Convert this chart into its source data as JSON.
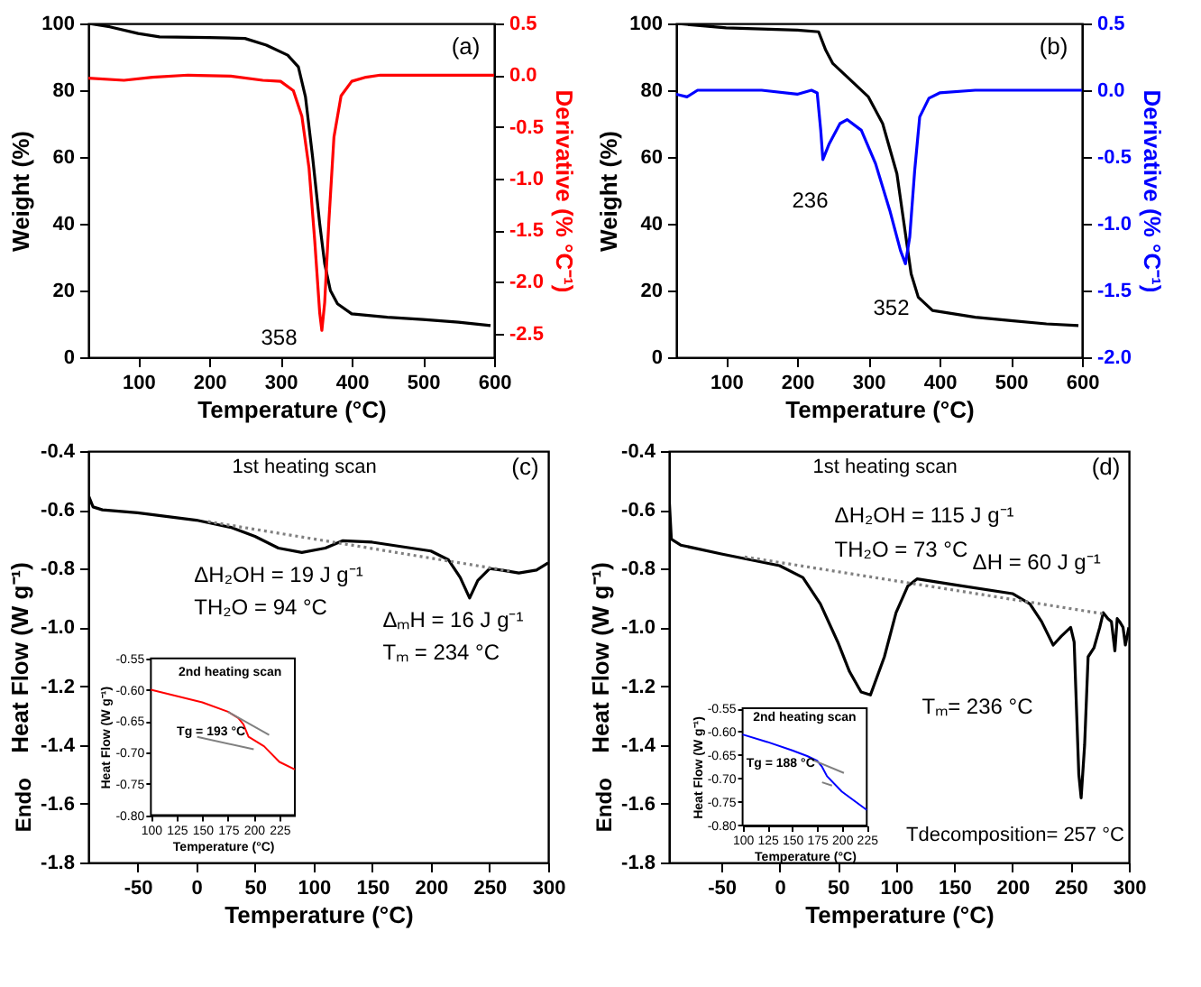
{
  "chart_data": [
    {
      "type": "line",
      "xlabel": "Temperature (°C)",
      "ylabel": "Weight (%)",
      "y2label": "Derivative (% °C⁻¹)",
      "xlim": [
        30,
        600
      ],
      "xticks": [
        100,
        200,
        300,
        400,
        500,
        600
      ],
      "ylim": [
        0,
        100
      ],
      "yticks": [
        0,
        20,
        40,
        60,
        80,
        100
      ],
      "y2lim": [
        -2.73,
        0.5
      ],
      "y2ticks": [
        0.5,
        {
          "value": 0,
          "label": "0.0"
        },
        -0.5,
        {
          "value": -1,
          "label": "-1.0"
        },
        -1.5,
        {
          "value": -2,
          "label": "-2.0"
        },
        -2.5
      ],
      "annotations": [
        "(a)",
        "358"
      ],
      "series": [
        {
          "color": "#000000",
          "x": [
            30,
            60,
            100,
            130,
            200,
            250,
            280,
            310,
            325,
            335,
            345,
            355,
            362,
            370,
            380,
            400,
            450,
            500,
            550,
            595
          ],
          "values": [
            100,
            99,
            97,
            96,
            95.8,
            95.5,
            93.5,
            90.5,
            87,
            78,
            60,
            40,
            28,
            20,
            16,
            13,
            12,
            11.3,
            10.5,
            9.5
          ]
        },
        {
          "color": "#ff0000",
          "axis": "y2",
          "x": [
            30,
            80,
            120,
            170,
            230,
            275,
            300,
            318,
            330,
            340,
            348,
            355,
            358,
            362,
            368,
            375,
            385,
            400,
            420,
            440,
            500,
            600
          ],
          "values": [
            -0.03,
            -0.05,
            -0.02,
            0,
            -0.01,
            -0.05,
            -0.06,
            -0.15,
            -0.4,
            -0.9,
            -1.6,
            -2.3,
            -2.47,
            -2.2,
            -1.4,
            -0.6,
            -0.2,
            -0.06,
            -0.02,
            0,
            0,
            0
          ]
        }
      ]
    },
    {
      "type": "line",
      "xlabel": "Temperature (°C)",
      "ylabel": "Weight (%)",
      "y2label": "Derivative (% °C⁻¹)",
      "xlim": [
        30,
        600
      ],
      "xticks": [
        100,
        200,
        300,
        400,
        500,
        600
      ],
      "ylim": [
        0,
        100
      ],
      "yticks": [
        0,
        20,
        40,
        60,
        80,
        100
      ],
      "y2lim": [
        -2,
        0.5
      ],
      "y2ticks": [
        0.5,
        {
          "value": 0,
          "label": "0.0"
        },
        -0.5,
        {
          "value": -1,
          "label": "-1.0"
        },
        -1.5,
        {
          "value": -2,
          "label": "-2.0"
        }
      ],
      "annotations": [
        "(b)",
        "236",
        "352"
      ],
      "series": [
        {
          "color": "#000000",
          "x": [
            30,
            100,
            200,
            230,
            240,
            250,
            270,
            300,
            320,
            340,
            350,
            360,
            370,
            390,
            450,
            500,
            550,
            595
          ],
          "values": [
            100,
            98.7,
            98,
            97.5,
            92,
            88,
            84,
            78,
            70,
            55,
            40,
            25,
            18,
            14,
            12,
            11,
            10,
            9.5
          ]
        },
        {
          "color": "#0000ff",
          "axis": "y2",
          "x": [
            30,
            45,
            60,
            150,
            200,
            220,
            228,
            233,
            236,
            245,
            260,
            270,
            290,
            310,
            330,
            345,
            352,
            358,
            365,
            372,
            385,
            400,
            450,
            600
          ],
          "values": [
            -0.03,
            -0.05,
            0,
            0,
            -0.03,
            0,
            -0.02,
            -0.3,
            -0.52,
            -0.4,
            -0.25,
            -0.22,
            -0.3,
            -0.55,
            -0.9,
            -1.2,
            -1.3,
            -1.1,
            -0.6,
            -0.2,
            -0.06,
            -0.02,
            0,
            0
          ]
        }
      ]
    },
    {
      "type": "line",
      "xlabel": "Temperature (°C)",
      "ylabel": "Heat Flow (W g⁻¹)",
      "xlim": [
        -92,
        300
      ],
      "xticks": [
        -50,
        0,
        50,
        100,
        150,
        200,
        250,
        300
      ],
      "ylim": [
        -1.8,
        -0.4
      ],
      "yticks": [
        -1.8,
        -1.6,
        -1.4,
        -1.2,
        {
          "value": -1,
          "label": "-1.0"
        },
        -0.8,
        -0.6,
        -0.4
      ],
      "annotations": [
        "1st heating scan",
        "(c)",
        "ΔH₂OH = 19 J g⁻¹",
        "TH₂O = 94 °C",
        "ΔₘH = 16 J g⁻¹",
        "Tₘ = 234 °C",
        "Endo"
      ],
      "series": [
        {
          "color": "#000000",
          "x": [
            -92,
            -88,
            -80,
            -50,
            0,
            30,
            50,
            70,
            90,
            110,
            125,
            150,
            200,
            215,
            225,
            233,
            240,
            250,
            260,
            275,
            290,
            300
          ],
          "values": [
            -0.55,
            -0.59,
            -0.6,
            -0.61,
            -0.635,
            -0.66,
            -0.69,
            -0.73,
            -0.745,
            -0.73,
            -0.705,
            -0.71,
            -0.74,
            -0.77,
            -0.83,
            -0.9,
            -0.84,
            -0.8,
            -0.805,
            -0.815,
            -0.805,
            -0.78
          ]
        },
        {
          "color": "#808080",
          "line_style": "dotted",
          "x": [
            10,
            270
          ],
          "values": [
            -0.64,
            -0.81
          ]
        }
      ]
    },
    {
      "type": "line",
      "xlabel": "Temperature (°C)",
      "ylabel": "Heat Flow (W g⁻¹)",
      "xlim": [
        100,
        240
      ],
      "xticks": [
        100,
        125,
        150,
        175,
        200,
        225
      ],
      "ylim": [
        -0.8,
        -0.55
      ],
      "yticks": [
        {
          "value": -0.8,
          "label": "-0.80"
        },
        -0.75,
        {
          "value": -0.7,
          "label": "-0.70"
        },
        -0.65,
        {
          "value": -0.6,
          "label": "-0.60"
        },
        -0.55
      ],
      "annotations": [
        "2nd heating scan",
        "Tg = 193 °C"
      ],
      "series": [
        {
          "color": "#ff0000",
          "x": [
            100,
            125,
            150,
            175,
            185,
            190,
            195,
            200,
            210,
            225,
            240
          ],
          "values": [
            -0.6,
            -0.61,
            -0.62,
            -0.635,
            -0.645,
            -0.655,
            -0.675,
            -0.68,
            -0.69,
            -0.715,
            -0.727
          ]
        },
        {
          "color": "#808080",
          "x": [
            175,
            215
          ],
          "values": [
            -0.635,
            -0.672
          ]
        },
        {
          "color": "#808080",
          "x": [
            145,
            200
          ],
          "values": [
            -0.675,
            -0.695
          ]
        }
      ]
    },
    {
      "type": "line",
      "xlabel": "Temperature (°C)",
      "ylabel": "Heat Flow (W g⁻¹)",
      "xlim": [
        -95,
        300
      ],
      "xticks": [
        -50,
        0,
        50,
        100,
        150,
        200,
        250,
        300
      ],
      "ylim": [
        -1.8,
        -0.4
      ],
      "yticks": [
        -1.8,
        -1.6,
        -1.4,
        -1.2,
        {
          "value": -1,
          "label": "-1.0"
        },
        -0.8,
        -0.6,
        -0.4
      ],
      "annotations": [
        "1st heating scan",
        "(d)",
        "ΔH₂OH = 115 J g⁻¹",
        "TH₂O = 73 °C",
        "ΔH = 60 J g⁻¹",
        "Tₘ= 236 °C",
        "Tdecomposition= 257 °C",
        "Endo"
      ],
      "series": [
        {
          "color": "#000000",
          "x": [
            -95,
            -93,
            -85,
            -50,
            0,
            20,
            35,
            50,
            60,
            70,
            78,
            90,
            100,
            110,
            118,
            150,
            200,
            215,
            225,
            235,
            242,
            250,
            253,
            257,
            259,
            262,
            265,
            270,
            275,
            278,
            282,
            285,
            288,
            290,
            292,
            295,
            297,
            300
          ],
          "values": [
            -0.55,
            -0.7,
            -0.72,
            -0.75,
            -0.79,
            -0.83,
            -0.92,
            -1.05,
            -1.15,
            -1.22,
            -1.23,
            -1.1,
            -0.95,
            -0.86,
            -0.835,
            -0.855,
            -0.885,
            -0.92,
            -0.98,
            -1.06,
            -1.03,
            -1.0,
            -1.05,
            -1.5,
            -1.58,
            -1.4,
            -1.1,
            -1.07,
            -1.0,
            -0.95,
            -0.97,
            -0.98,
            -1.08,
            -0.97,
            -0.98,
            -1.0,
            -1.06,
            -1.0
          ]
        },
        {
          "color": "#808080",
          "line_style": "dotted",
          "x": [
            -30,
            280
          ],
          "values": [
            -0.76,
            -0.955
          ]
        }
      ]
    },
    {
      "type": "line",
      "xlabel": "Temperature (°C)",
      "ylabel": "Heat Flow (W g⁻¹)",
      "xlim": [
        100,
        225
      ],
      "xticks": [
        100,
        125,
        150,
        175,
        200,
        225
      ],
      "ylim": [
        -0.8,
        -0.55
      ],
      "yticks": [
        {
          "value": -0.8,
          "label": "-0.80"
        },
        -0.75,
        {
          "value": -0.7,
          "label": "-0.70"
        },
        -0.65,
        {
          "value": -0.6,
          "label": "-0.60"
        },
        -0.55
      ],
      "annotations": [
        "2nd heating scan",
        "Tg = 188 °C"
      ],
      "series": [
        {
          "color": "#0000ff",
          "x": [
            100,
            125,
            150,
            165,
            175,
            180,
            185,
            200,
            225
          ],
          "values": [
            -0.606,
            -0.622,
            -0.64,
            -0.652,
            -0.662,
            -0.675,
            -0.695,
            -0.728,
            -0.767
          ]
        },
        {
          "color": "#808080",
          "x": [
            170,
            202
          ],
          "values": [
            -0.66,
            -0.688
          ]
        },
        {
          "color": "#808080",
          "x": [
            180,
            190
          ],
          "values": [
            -0.708,
            -0.715
          ]
        }
      ]
    }
  ]
}
